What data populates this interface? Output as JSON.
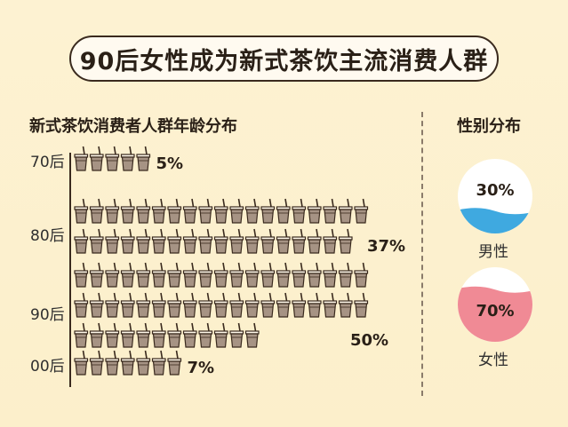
{
  "title": "90后女性成为新式茶饮主流消费人群",
  "age_section": {
    "title": "新式茶饮消费者人群年龄分布"
  },
  "gender_section": {
    "title": "性别分布"
  },
  "chart_data": [
    {
      "type": "bar",
      "title": "新式茶饮消费者人群年龄分布",
      "categories": [
        "70后",
        "80后",
        "90后",
        "00后"
      ],
      "values": [
        5,
        37,
        50,
        7
      ],
      "value_labels": [
        "5%",
        "37%",
        "50%",
        "7%"
      ],
      "unit_icon": "milk-tea-cup-icon",
      "icons_per_group": [
        5,
        37,
        50,
        7
      ],
      "icons_per_row": 19
    },
    {
      "type": "pie",
      "title": "性别分布",
      "categories": [
        "男性",
        "女性"
      ],
      "values": [
        30,
        70
      ],
      "value_labels": [
        "30%",
        "70%"
      ],
      "colors": [
        "#3fa9e0",
        "#f08a95"
      ]
    }
  ],
  "colors": {
    "cup_fill": "#a69384",
    "cup_outline": "#3a2a1e",
    "male": "#3fa9e0",
    "female": "#f08a95"
  }
}
